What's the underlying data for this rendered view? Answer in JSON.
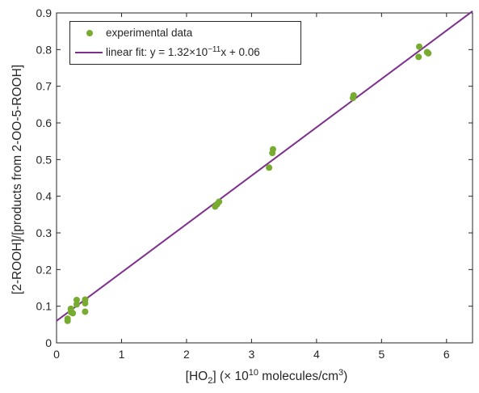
{
  "chart_data": {
    "type": "scatter",
    "xlabel_parts": [
      "[HO",
      "2",
      "] (× 10",
      "10",
      " molecules/cm",
      "3",
      ")"
    ],
    "ylabel": "[2-ROOH]/[products from 2-OO-5-ROOH]",
    "xlim": [
      0,
      6.4
    ],
    "ylim": [
      0,
      0.9
    ],
    "xticks": [
      "0",
      "1",
      "2",
      "3",
      "4",
      "5",
      "6"
    ],
    "yticks": [
      "0",
      "0.1",
      "0.2",
      "0.3",
      "0.4",
      "0.5",
      "0.6",
      "0.7",
      "0.8",
      "0.9"
    ],
    "grid": false,
    "legend_position": "top-left",
    "series": [
      {
        "name": "experimental data",
        "kind": "scatter",
        "color": "#77ac30",
        "points": [
          [
            0.17,
            0.06
          ],
          [
            0.17,
            0.066
          ],
          [
            0.22,
            0.084
          ],
          [
            0.22,
            0.093
          ],
          [
            0.25,
            0.081
          ],
          [
            0.31,
            0.105
          ],
          [
            0.31,
            0.117
          ],
          [
            0.44,
            0.085
          ],
          [
            0.44,
            0.108
          ],
          [
            0.44,
            0.118
          ],
          [
            2.44,
            0.372
          ],
          [
            2.47,
            0.378
          ],
          [
            2.5,
            0.385
          ],
          [
            3.27,
            0.478
          ],
          [
            3.32,
            0.518
          ],
          [
            3.33,
            0.528
          ],
          [
            4.56,
            0.668
          ],
          [
            4.57,
            0.675
          ],
          [
            5.57,
            0.78
          ],
          [
            5.58,
            0.808
          ],
          [
            5.7,
            0.793
          ],
          [
            5.72,
            0.79
          ]
        ]
      },
      {
        "name_parts": [
          "linear fit: y = 1.32×10",
          "−11",
          "x + 0.06"
        ],
        "kind": "line",
        "color": "#7e2f8e",
        "slope": 0.132,
        "intercept": 0.06,
        "x_range": [
          0,
          6.4
        ]
      }
    ]
  }
}
